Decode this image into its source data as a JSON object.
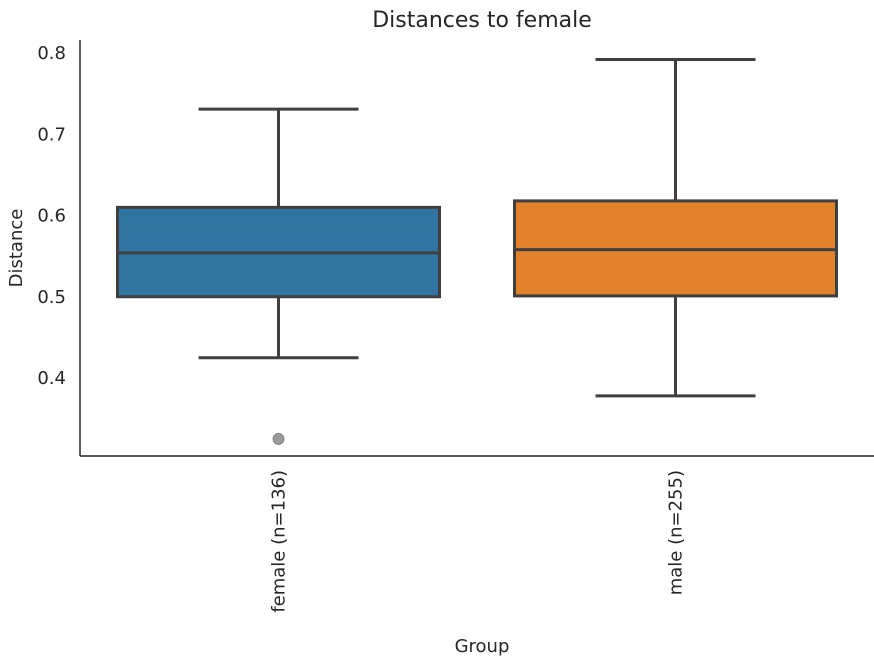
{
  "chart_data": {
    "type": "box",
    "title": "Distances to female",
    "xlabel": "Group",
    "ylabel": "Distance",
    "ylim": [
      0.3,
      0.815
    ],
    "yticks": [
      "0.4",
      "0.5",
      "0.6",
      "0.7",
      "0.8"
    ],
    "grid": false,
    "categories": [
      "female (n=136)",
      "male (n=255)"
    ],
    "boxes": [
      {
        "category": "female (n=136)",
        "whisker_low": 0.425,
        "q1": 0.5,
        "median": 0.554,
        "q3": 0.61,
        "whisker_high": 0.731,
        "outliers": [
          0.325
        ],
        "color": "#3274a1"
      },
      {
        "category": "male (n=255)",
        "whisker_low": 0.378,
        "q1": 0.501,
        "median": 0.558,
        "q3": 0.618,
        "whisker_high": 0.792,
        "outliers": [],
        "color": "#e1812c"
      }
    ],
    "line_color": "#3f3f3f",
    "outlier_color": "#9b9b9b",
    "axis_color": "#262626"
  }
}
